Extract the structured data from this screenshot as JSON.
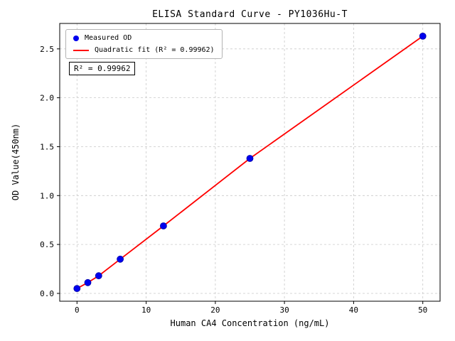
{
  "chart_data": {
    "type": "scatter",
    "title": "ELISA Standard Curve - PY1036Hu-T",
    "xlabel": "Human CA4 Concentration (ng/mL)",
    "ylabel": "OD Value(450nm)",
    "x": [
      0,
      1.56,
      3.13,
      6.25,
      12.5,
      25,
      50
    ],
    "y": [
      0.05,
      0.11,
      0.18,
      0.35,
      0.69,
      1.38,
      2.63
    ],
    "series": [
      {
        "name": "Measured OD",
        "type": "scatter",
        "color": "#0000ee"
      },
      {
        "name": "Quadratic fit (R² = 0.99962)",
        "type": "line",
        "color": "#ff0000"
      }
    ],
    "xticks": [
      0,
      10,
      20,
      30,
      40,
      50
    ],
    "yticks": [
      "0.0",
      "0.5",
      "1.0",
      "1.5",
      "2.0",
      "2.5"
    ],
    "xlim": [
      -2.5,
      52.5
    ],
    "ylim": [
      -0.08,
      2.76
    ],
    "grid": true,
    "legend_position": "upper left",
    "annotation": "R² = 0.99962",
    "r_squared": 0.99962
  }
}
